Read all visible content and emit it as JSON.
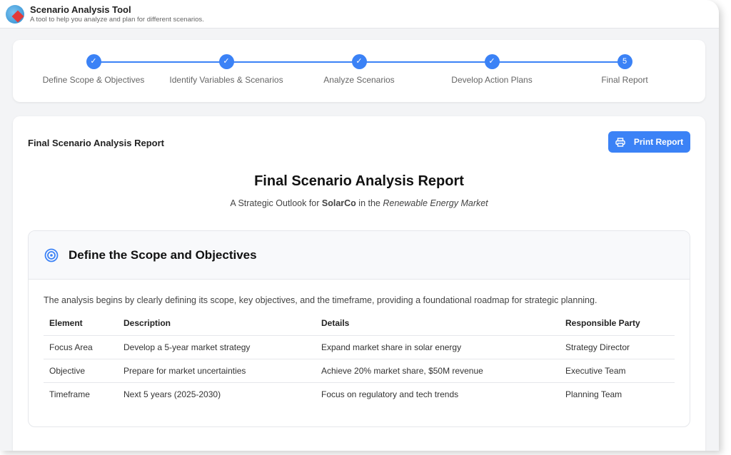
{
  "app": {
    "title": "Scenario Analysis Tool",
    "subtitle": "A tool to help you analyze and plan for different scenarios."
  },
  "stepper": {
    "steps": [
      {
        "label": "Define Scope & Objectives",
        "status": "done"
      },
      {
        "label": "Identify Variables & Scenarios",
        "status": "done"
      },
      {
        "label": "Analyze Scenarios",
        "status": "done"
      },
      {
        "label": "Develop Action Plans",
        "status": "done"
      },
      {
        "label": "Final Report",
        "status": "current",
        "number": "5"
      }
    ],
    "check": "✓"
  },
  "main": {
    "card_title": "Final Scenario Analysis Report",
    "print_label": "Print Report",
    "report_title": "Final Scenario Analysis Report",
    "subtitle_pre": "A Strategic Outlook for ",
    "company": "SolarCo",
    "subtitle_mid": " in the ",
    "market": "Renewable Energy Market"
  },
  "section": {
    "title": "Define the Scope and Objectives",
    "intro": "The analysis begins by clearly defining its scope, key objectives, and the timeframe, providing a foundational roadmap for strategic planning.",
    "headers": [
      "Element",
      "Description",
      "Details",
      "Responsible Party"
    ],
    "rows": [
      [
        "Focus Area",
        "Develop a 5-year market strategy",
        "Expand market share in solar energy",
        "Strategy Director"
      ],
      [
        "Objective",
        "Prepare for market uncertainties",
        "Achieve 20% market share, $50M revenue",
        "Executive Team"
      ],
      [
        "Timeframe",
        "Next 5 years (2025-2030)",
        "Focus on regulatory and tech trends",
        "Planning Team"
      ]
    ]
  },
  "colors": {
    "accent": "#3b82f6"
  }
}
